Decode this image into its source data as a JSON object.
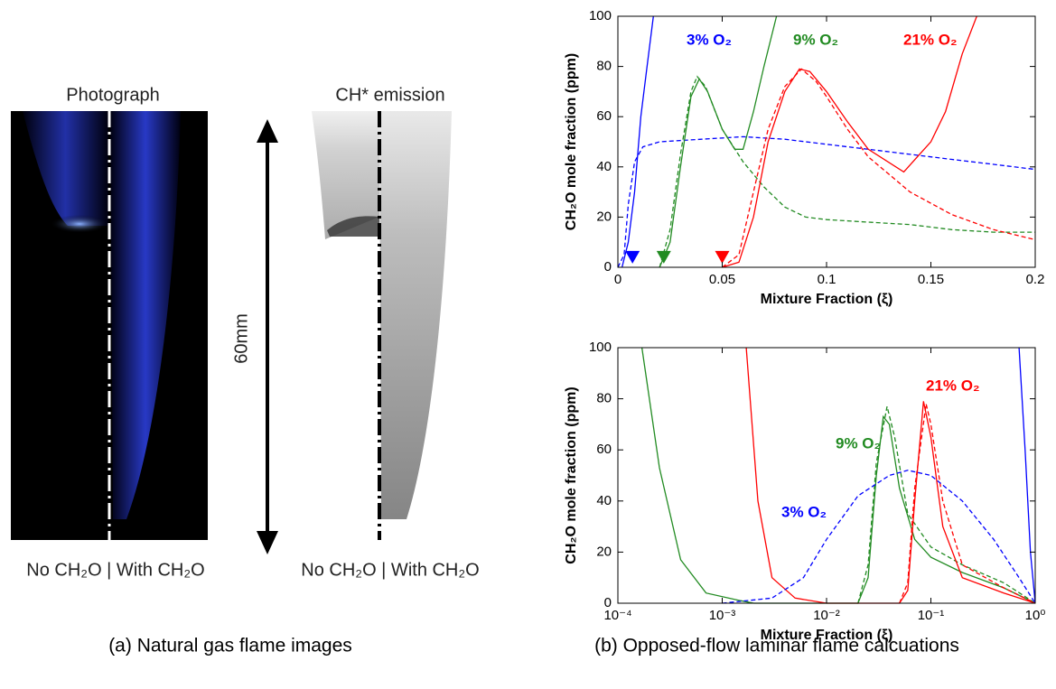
{
  "panel_a": {
    "photo_title": "Photograph",
    "emission_title": "CH* emission",
    "photo_label": "No CH₂O | With CH₂O",
    "emission_label": "No CH₂O | With CH₂O",
    "scale_label": "60mm",
    "caption": "(a) Natural gas flame images"
  },
  "panel_b": {
    "caption": "(b) Opposed-flow laminar flame calcuations"
  },
  "chart_data": [
    {
      "type": "line",
      "xlabel": "Mixture Fraction (ξ)",
      "ylabel": "CH₂O mole fraction (ppm)",
      "xlim": [
        0,
        0.2
      ],
      "xticks": [
        0,
        0.05,
        0.1,
        0.15,
        0.2
      ],
      "ylim": [
        0,
        100
      ],
      "yticks": [
        0,
        20,
        40,
        60,
        80,
        100
      ],
      "annotations": [
        {
          "text": "3% O₂",
          "color": "#0000ff"
        },
        {
          "text": "9% O₂",
          "color": "#228b22"
        },
        {
          "text": "21% O₂",
          "color": "#ff0000"
        }
      ],
      "markers": [
        {
          "x": 0.007,
          "value": 4,
          "color": "#0000ff"
        },
        {
          "x": 0.022,
          "value": 4,
          "color": "#228b22"
        },
        {
          "x": 0.05,
          "value": 4,
          "color": "#ff0000"
        }
      ],
      "series": [
        {
          "color": "#0000ff",
          "style": "solid",
          "x": [
            0.002,
            0.005,
            0.008,
            0.011,
            0.014,
            0.017
          ],
          "values": [
            0,
            10,
            30,
            60,
            80,
            100
          ]
        },
        {
          "color": "#0000ff",
          "style": "dashed",
          "x": [
            0,
            0.003,
            0.005,
            0.008,
            0.012,
            0.02,
            0.04,
            0.06,
            0.08,
            0.1,
            0.12,
            0.14,
            0.16,
            0.18,
            0.2
          ],
          "values": [
            0,
            5,
            25,
            42,
            48,
            50,
            51,
            52,
            51,
            49,
            47,
            45,
            43,
            41,
            39
          ]
        },
        {
          "color": "#228b22",
          "style": "solid",
          "x": [
            0.02,
            0.025,
            0.03,
            0.035,
            0.039,
            0.043,
            0.05,
            0.056,
            0.06,
            0.065,
            0.07,
            0.076
          ],
          "values": [
            0,
            10,
            40,
            68,
            75,
            70,
            55,
            47,
            47,
            62,
            80,
            100
          ]
        },
        {
          "color": "#228b22",
          "style": "dashed",
          "x": [
            0.02,
            0.025,
            0.03,
            0.035,
            0.038,
            0.042,
            0.05,
            0.06,
            0.07,
            0.08,
            0.09,
            0.1,
            0.12,
            0.14,
            0.16,
            0.18,
            0.2
          ],
          "values": [
            0,
            15,
            45,
            70,
            76,
            72,
            55,
            42,
            32,
            24,
            20,
            19,
            18,
            17,
            15,
            14,
            14
          ]
        },
        {
          "color": "#ff0000",
          "style": "solid",
          "x": [
            0.05,
            0.058,
            0.065,
            0.072,
            0.08,
            0.087,
            0.092,
            0.1,
            0.11,
            0.12,
            0.137,
            0.15,
            0.157,
            0.165,
            0.172
          ],
          "values": [
            0,
            2,
            20,
            50,
            70,
            79,
            78,
            70,
            58,
            47,
            38,
            50,
            62,
            85,
            100
          ]
        },
        {
          "color": "#ff0000",
          "style": "dashed",
          "x": [
            0.05,
            0.058,
            0.065,
            0.072,
            0.08,
            0.088,
            0.095,
            0.1,
            0.11,
            0.12,
            0.14,
            0.16,
            0.18,
            0.2
          ],
          "values": [
            0,
            5,
            30,
            55,
            72,
            79,
            74,
            68,
            55,
            44,
            30,
            21,
            15,
            11
          ]
        }
      ]
    },
    {
      "type": "line",
      "xscale": "log",
      "xlabel": "Mixture Fraction (ξ)",
      "ylabel": "CH₂O mole fraction (ppm)",
      "xlim": [
        0.0001,
        1
      ],
      "xticks": [
        {
          "value": 0.0001,
          "label": "10⁻⁴"
        },
        {
          "value": 0.001,
          "label": "10⁻³"
        },
        {
          "value": 0.01,
          "label": "10⁻²"
        },
        {
          "value": 0.1,
          "label": "10⁻¹"
        },
        {
          "value": 1,
          "label": "10⁰"
        }
      ],
      "ylim": [
        0,
        100
      ],
      "yticks": [
        0,
        20,
        40,
        60,
        80,
        100
      ],
      "annotations": [
        {
          "text": "21% O₂",
          "color": "#ff0000"
        },
        {
          "text": "9% O₂",
          "color": "#228b22"
        },
        {
          "text": "3% O₂",
          "color": "#0000ff"
        }
      ],
      "series": [
        {
          "color": "#228b22",
          "style": "solid",
          "x": [
            0.00017,
            0.00025,
            0.0004,
            0.0007,
            0.0015,
            0.002,
            0.02,
            0.025,
            0.03,
            0.035,
            0.04,
            0.05,
            0.07,
            0.1,
            0.2,
            0.5,
            1
          ],
          "values": [
            100,
            53,
            17,
            4,
            1,
            0,
            0,
            10,
            50,
            73,
            70,
            45,
            25,
            18,
            12,
            6,
            0
          ]
        },
        {
          "color": "#228b22",
          "style": "dashed",
          "x": [
            0.02,
            0.025,
            0.03,
            0.038,
            0.045,
            0.06,
            0.1,
            0.2,
            0.5,
            1
          ],
          "values": [
            0,
            15,
            55,
            77,
            65,
            35,
            22,
            15,
            8,
            0
          ]
        },
        {
          "color": "#ff0000",
          "style": "solid",
          "x": [
            0.0017,
            0.0022,
            0.003,
            0.005,
            0.01,
            0.05,
            0.06,
            0.07,
            0.085,
            0.1,
            0.13,
            0.2,
            0.5,
            1
          ],
          "values": [
            100,
            40,
            10,
            2,
            0,
            0,
            5,
            40,
            79,
            65,
            30,
            10,
            4,
            0
          ]
        },
        {
          "color": "#ff0000",
          "style": "dashed",
          "x": [
            0.05,
            0.06,
            0.07,
            0.09,
            0.1,
            0.13,
            0.2,
            0.5,
            1
          ],
          "values": [
            0,
            8,
            45,
            78,
            70,
            40,
            15,
            6,
            0
          ]
        },
        {
          "color": "#0000ff",
          "style": "solid",
          "x": [
            0.7,
            0.8,
            0.9,
            1
          ],
          "values": [
            100,
            60,
            20,
            0
          ]
        },
        {
          "color": "#0000ff",
          "style": "dashed",
          "x": [
            0.001,
            0.003,
            0.006,
            0.01,
            0.02,
            0.04,
            0.06,
            0.1,
            0.2,
            0.4,
            0.7,
            1
          ],
          "values": [
            0,
            2,
            10,
            25,
            42,
            50,
            52,
            50,
            40,
            25,
            10,
            0
          ]
        }
      ]
    }
  ]
}
